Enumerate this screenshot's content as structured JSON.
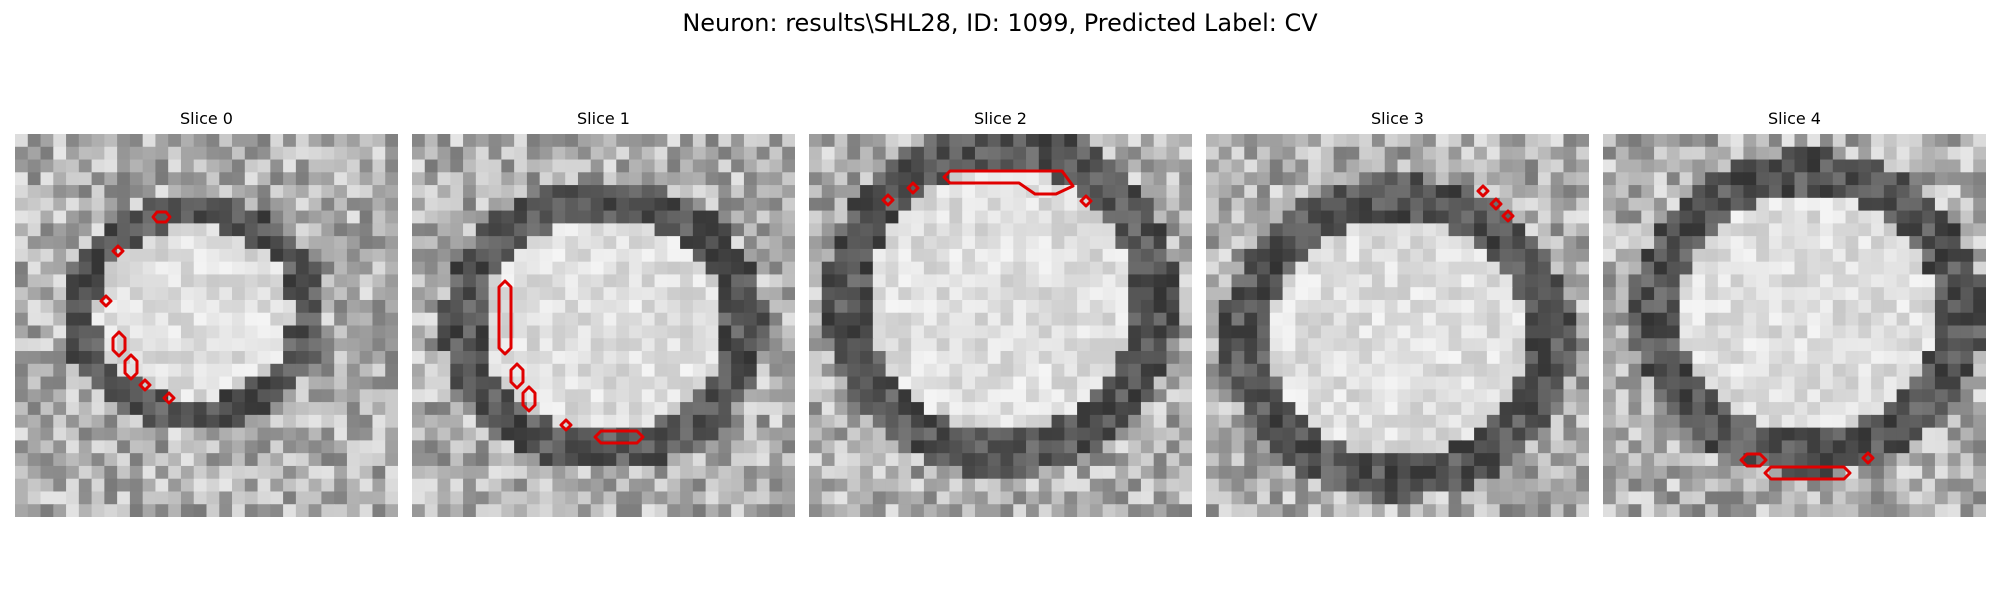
{
  "title": "Neuron: results\\SHL28, ID: 1099, Predicted Label: CV",
  "panels": [
    {
      "title": "Slice 0"
    },
    {
      "title": "Slice 1"
    },
    {
      "title": "Slice 2"
    },
    {
      "title": "Slice 3"
    },
    {
      "title": "Slice 4"
    }
  ],
  "colors": {
    "background": "#ffffff",
    "contour": "#e00000",
    "text": "#000000"
  }
}
